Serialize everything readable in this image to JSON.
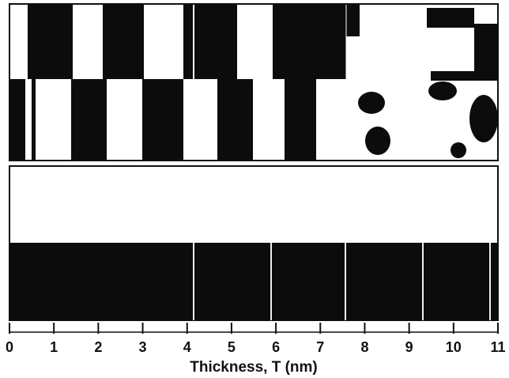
{
  "chart_data": {
    "type": "image-axis",
    "x_label": "Thickness, T (nm)",
    "xlim": [
      0,
      11
    ],
    "xticks": [
      0,
      1,
      2,
      3,
      4,
      5,
      6,
      7,
      8,
      9,
      10,
      11
    ]
  }
}
